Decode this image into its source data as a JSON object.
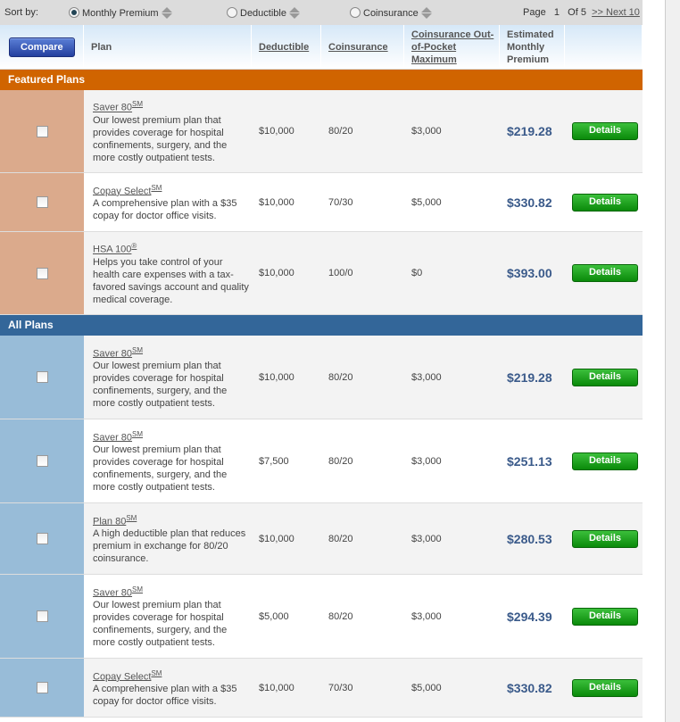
{
  "sort": {
    "label": "Sort by:",
    "options": [
      {
        "label": "Monthly Premium",
        "selected": true
      },
      {
        "label": "Deductible",
        "selected": false
      },
      {
        "label": "Coinsurance",
        "selected": false
      }
    ]
  },
  "pager": {
    "page_label": "Page",
    "page": "1",
    "of_label": "Of",
    "total": "5",
    "next": ">> Next 10"
  },
  "header": {
    "compare": "Compare",
    "plan": "Plan",
    "deductible": "Deductible",
    "coinsurance": "Coinsurance",
    "oop": "Coinsurance Out-of-Pocket Maximum",
    "premium": "Estimated Monthly Premium"
  },
  "colors": {
    "featured": "#d06400",
    "featured_side": "#dbaa8c",
    "all": "#336699",
    "all_side": "#98bcd8",
    "price": "#3a5a8a",
    "details": "#1a9e1a"
  },
  "featured": {
    "title": "Featured Plans",
    "rows": [
      {
        "name": "Saver 80",
        "mark": "SM",
        "desc": "Our lowest premium plan that provides coverage for hospital confinements, surgery, and the more costly outpatient tests.",
        "deductible": "$10,000",
        "coinsurance": "80/20",
        "oop": "$3,000",
        "premium": "$219.28",
        "details": "Details"
      },
      {
        "name": "Copay Select",
        "mark": "SM",
        "desc": "A comprehensive plan with a $35 copay for doctor office visits.",
        "deductible": "$10,000",
        "coinsurance": "70/30",
        "oop": "$5,000",
        "premium": "$330.82",
        "details": "Details"
      },
      {
        "name": "HSA 100",
        "mark": "®",
        "desc": "Helps you take control of your health care expenses with a tax-favored savings account and quality medical coverage.",
        "deductible": "$10,000",
        "coinsurance": "100/0",
        "oop": "$0",
        "premium": "$393.00",
        "details": "Details"
      }
    ]
  },
  "all": {
    "title": "All Plans",
    "rows": [
      {
        "name": "Saver 80",
        "mark": "SM",
        "desc": "Our lowest premium plan that provides coverage for hospital confinements, surgery, and the more costly outpatient tests.",
        "deductible": "$10,000",
        "coinsurance": "80/20",
        "oop": "$3,000",
        "premium": "$219.28",
        "details": "Details"
      },
      {
        "name": "Saver 80",
        "mark": "SM",
        "desc": "Our lowest premium plan that provides coverage for hospital confinements, surgery, and the more costly outpatient tests.",
        "deductible": "$7,500",
        "coinsurance": "80/20",
        "oop": "$3,000",
        "premium": "$251.13",
        "details": "Details"
      },
      {
        "name": "Plan 80",
        "mark": "SM",
        "desc": "A high deductible plan that reduces premium in exchange for 80/20 coinsurance.",
        "deductible": "$10,000",
        "coinsurance": "80/20",
        "oop": "$3,000",
        "premium": "$280.53",
        "details": "Details"
      },
      {
        "name": "Saver 80",
        "mark": "SM",
        "desc": "Our lowest premium plan that provides coverage for hospital confinements, surgery, and the more costly outpatient tests.",
        "deductible": "$5,000",
        "coinsurance": "80/20",
        "oop": "$3,000",
        "premium": "$294.39",
        "details": "Details"
      },
      {
        "name": "Copay Select",
        "mark": "SM",
        "desc": "A comprehensive plan with a $35 copay for doctor office visits.",
        "deductible": "$10,000",
        "coinsurance": "70/30",
        "oop": "$5,000",
        "premium": "$330.82",
        "details": "Details"
      }
    ]
  }
}
